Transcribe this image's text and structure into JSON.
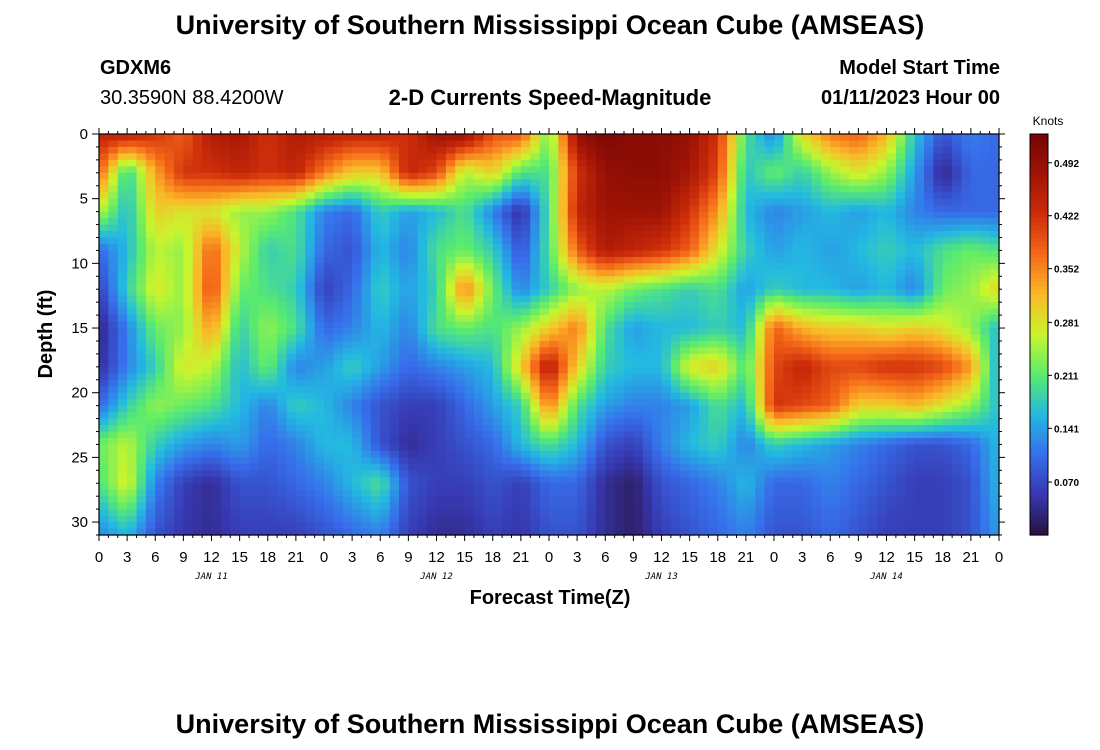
{
  "header": {
    "title": "University of Southern Mississippi Ocean Cube (AMSEAS)",
    "station": "GDXM6",
    "location": "30.3590N  88.4200W",
    "chart_title": "2-D Currents Speed-Magnitude",
    "model_start_label": "Model Start Time",
    "model_start_value": "01/11/2023 Hour 00"
  },
  "footer": {
    "title": "University of Southern Mississippi Ocean Cube (AMSEAS)"
  },
  "chart_data": {
    "type": "heatmap",
    "title": "2-D Currents Speed-Magnitude",
    "xlabel": "Forecast Time(Z)",
    "ylabel": "Depth (ft)",
    "colorbar_label": "Knots",
    "colorbar_ticks": [
      "0.070",
      "0.141",
      "0.211",
      "0.281",
      "0.352",
      "0.422",
      "0.492"
    ],
    "colorbar_range": [
      0.0,
      0.53
    ],
    "x_hours_range": [
      0,
      96
    ],
    "x_tick_labels": [
      "0",
      "3",
      "6",
      "9",
      "12",
      "15",
      "18",
      "21",
      "0",
      "3",
      "6",
      "9",
      "12",
      "15",
      "18",
      "21",
      "0",
      "3",
      "6",
      "9",
      "12",
      "15",
      "18",
      "21",
      "0",
      "3",
      "6",
      "9",
      "12",
      "15",
      "18",
      "21",
      "0"
    ],
    "day_labels": [
      "JAN 11",
      "JAN 12",
      "JAN 13",
      "JAN 14"
    ],
    "y_range": [
      0,
      31
    ],
    "y_ticks": [
      0,
      5,
      10,
      15,
      20,
      25,
      30
    ],
    "y_tick_labels": [
      "0",
      "5",
      "10",
      "15",
      "20",
      "25",
      "30"
    ],
    "grid_x_hours": [
      0,
      3,
      6,
      9,
      12,
      15,
      18,
      21,
      24,
      27,
      30,
      33,
      36,
      39,
      42,
      45,
      48,
      51,
      54,
      57,
      60,
      63,
      66,
      69,
      72,
      75,
      78,
      81,
      84,
      87,
      90,
      93,
      96
    ],
    "grid_depths": [
      0,
      3,
      6,
      9,
      12,
      15,
      18,
      21,
      24,
      27,
      31
    ],
    "values": [
      [
        0.44,
        0.45,
        0.42,
        0.38,
        0.46,
        0.47,
        0.42,
        0.46,
        0.45,
        0.44,
        0.44,
        0.42,
        0.48,
        0.49,
        0.39,
        0.39,
        0.22,
        0.49,
        0.52,
        0.5,
        0.5,
        0.49,
        0.42,
        0.2,
        0.12,
        0.29,
        0.36,
        0.38,
        0.32,
        0.17,
        0.08,
        0.12,
        0.1
      ],
      [
        0.38,
        0.18,
        0.33,
        0.42,
        0.42,
        0.44,
        0.42,
        0.44,
        0.36,
        0.3,
        0.3,
        0.44,
        0.4,
        0.25,
        0.3,
        0.2,
        0.2,
        0.42,
        0.49,
        0.5,
        0.5,
        0.47,
        0.4,
        0.17,
        0.22,
        0.18,
        0.24,
        0.28,
        0.24,
        0.14,
        0.03,
        0.1,
        0.1
      ],
      [
        0.26,
        0.16,
        0.3,
        0.28,
        0.28,
        0.24,
        0.24,
        0.2,
        0.12,
        0.1,
        0.18,
        0.14,
        0.16,
        0.2,
        0.12,
        0.04,
        0.2,
        0.44,
        0.48,
        0.48,
        0.48,
        0.42,
        0.34,
        0.16,
        0.12,
        0.14,
        0.16,
        0.14,
        0.16,
        0.12,
        0.1,
        0.1,
        0.1
      ],
      [
        0.1,
        0.16,
        0.26,
        0.24,
        0.38,
        0.26,
        0.18,
        0.2,
        0.1,
        0.08,
        0.16,
        0.12,
        0.2,
        0.22,
        0.18,
        0.08,
        0.2,
        0.38,
        0.46,
        0.44,
        0.42,
        0.38,
        0.28,
        0.18,
        0.14,
        0.16,
        0.14,
        0.16,
        0.18,
        0.16,
        0.2,
        0.22,
        0.2
      ],
      [
        0.06,
        0.18,
        0.28,
        0.24,
        0.4,
        0.22,
        0.2,
        0.18,
        0.06,
        0.1,
        0.18,
        0.14,
        0.18,
        0.36,
        0.22,
        0.12,
        0.18,
        0.24,
        0.26,
        0.22,
        0.2,
        0.18,
        0.2,
        0.14,
        0.18,
        0.16,
        0.16,
        0.14,
        0.16,
        0.12,
        0.22,
        0.24,
        0.3
      ],
      [
        0.03,
        0.12,
        0.22,
        0.24,
        0.34,
        0.18,
        0.24,
        0.2,
        0.1,
        0.12,
        0.16,
        0.12,
        0.2,
        0.22,
        0.2,
        0.24,
        0.3,
        0.36,
        0.2,
        0.14,
        0.16,
        0.16,
        0.18,
        0.16,
        0.38,
        0.32,
        0.3,
        0.3,
        0.28,
        0.3,
        0.28,
        0.24,
        0.16
      ],
      [
        0.04,
        0.12,
        0.18,
        0.28,
        0.26,
        0.16,
        0.22,
        0.12,
        0.14,
        0.18,
        0.14,
        0.1,
        0.12,
        0.14,
        0.16,
        0.3,
        0.46,
        0.3,
        0.18,
        0.16,
        0.16,
        0.28,
        0.3,
        0.2,
        0.4,
        0.44,
        0.4,
        0.4,
        0.42,
        0.42,
        0.4,
        0.34,
        0.14
      ],
      [
        0.1,
        0.18,
        0.24,
        0.22,
        0.2,
        0.16,
        0.12,
        0.18,
        0.16,
        0.12,
        0.08,
        0.06,
        0.06,
        0.1,
        0.14,
        0.18,
        0.36,
        0.2,
        0.14,
        0.12,
        0.12,
        0.14,
        0.2,
        0.16,
        0.42,
        0.4,
        0.38,
        0.3,
        0.3,
        0.32,
        0.28,
        0.24,
        0.16
      ],
      [
        0.22,
        0.26,
        0.18,
        0.14,
        0.12,
        0.14,
        0.1,
        0.12,
        0.16,
        0.16,
        0.08,
        0.04,
        0.06,
        0.08,
        0.1,
        0.16,
        0.2,
        0.16,
        0.08,
        0.06,
        0.12,
        0.16,
        0.18,
        0.12,
        0.18,
        0.16,
        0.14,
        0.12,
        0.1,
        0.08,
        0.08,
        0.1,
        0.16
      ],
      [
        0.2,
        0.28,
        0.12,
        0.06,
        0.04,
        0.08,
        0.08,
        0.1,
        0.12,
        0.16,
        0.2,
        0.08,
        0.06,
        0.06,
        0.08,
        0.06,
        0.1,
        0.1,
        0.04,
        0.02,
        0.08,
        0.1,
        0.12,
        0.16,
        0.1,
        0.1,
        0.12,
        0.1,
        0.08,
        0.06,
        0.06,
        0.08,
        0.16
      ],
      [
        0.12,
        0.16,
        0.08,
        0.05,
        0.04,
        0.06,
        0.06,
        0.06,
        0.08,
        0.1,
        0.12,
        0.06,
        0.04,
        0.04,
        0.06,
        0.05,
        0.08,
        0.08,
        0.04,
        0.02,
        0.06,
        0.08,
        0.1,
        0.12,
        0.08,
        0.08,
        0.1,
        0.08,
        0.06,
        0.06,
        0.06,
        0.08,
        0.14
      ]
    ]
  }
}
